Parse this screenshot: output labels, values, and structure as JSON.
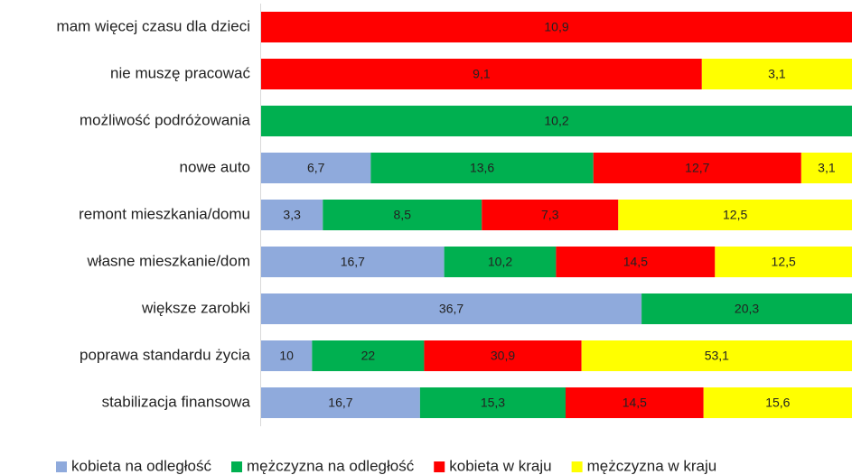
{
  "chart_data": {
    "type": "bar",
    "orientation": "horizontal",
    "stacking": "percent",
    "categories": [
      "mam więcej czasu dla dzieci",
      "nie muszę pracować",
      "możliwość podróżowania",
      "nowe auto",
      "remont mieszkania/domu",
      "własne mieszkanie/dom",
      "większe zarobki",
      "poprawa standardu życia",
      "stabilizacja finansowa"
    ],
    "series": [
      {
        "name": "kobieta na odległość",
        "color": "#8faadc",
        "values": [
          null,
          null,
          null,
          6.7,
          3.3,
          16.7,
          36.7,
          10,
          16.7
        ],
        "value_labels": [
          null,
          null,
          null,
          "6,7",
          "3,3",
          "16,7",
          "36,7",
          "10",
          "16,7"
        ]
      },
      {
        "name": "mężczyzna na odległość",
        "color": "#00b050",
        "values": [
          null,
          null,
          10.2,
          13.6,
          8.5,
          10.2,
          20.3,
          22,
          15.3
        ],
        "value_labels": [
          null,
          null,
          "10,2",
          "13,6",
          "8,5",
          "10,2",
          "20,3",
          "22",
          "15,3"
        ]
      },
      {
        "name": "kobieta w kraju",
        "color": "#ff0000",
        "values": [
          10.9,
          9.1,
          null,
          12.7,
          7.3,
          14.5,
          null,
          30.9,
          14.5
        ],
        "value_labels": [
          "10,9",
          "9,1",
          null,
          "12,7",
          "7,3",
          "14,5",
          null,
          "30,9",
          "14,5"
        ]
      },
      {
        "name": "mężczyzna w kraju",
        "color": "#ffff00",
        "values": [
          null,
          3.1,
          null,
          3.1,
          12.5,
          12.5,
          null,
          53.1,
          15.6
        ],
        "value_labels": [
          null,
          "3,1",
          null,
          "3,1",
          "12,5",
          "12,5",
          null,
          "53,1",
          "15,6"
        ]
      }
    ],
    "legend": "bottom"
  }
}
